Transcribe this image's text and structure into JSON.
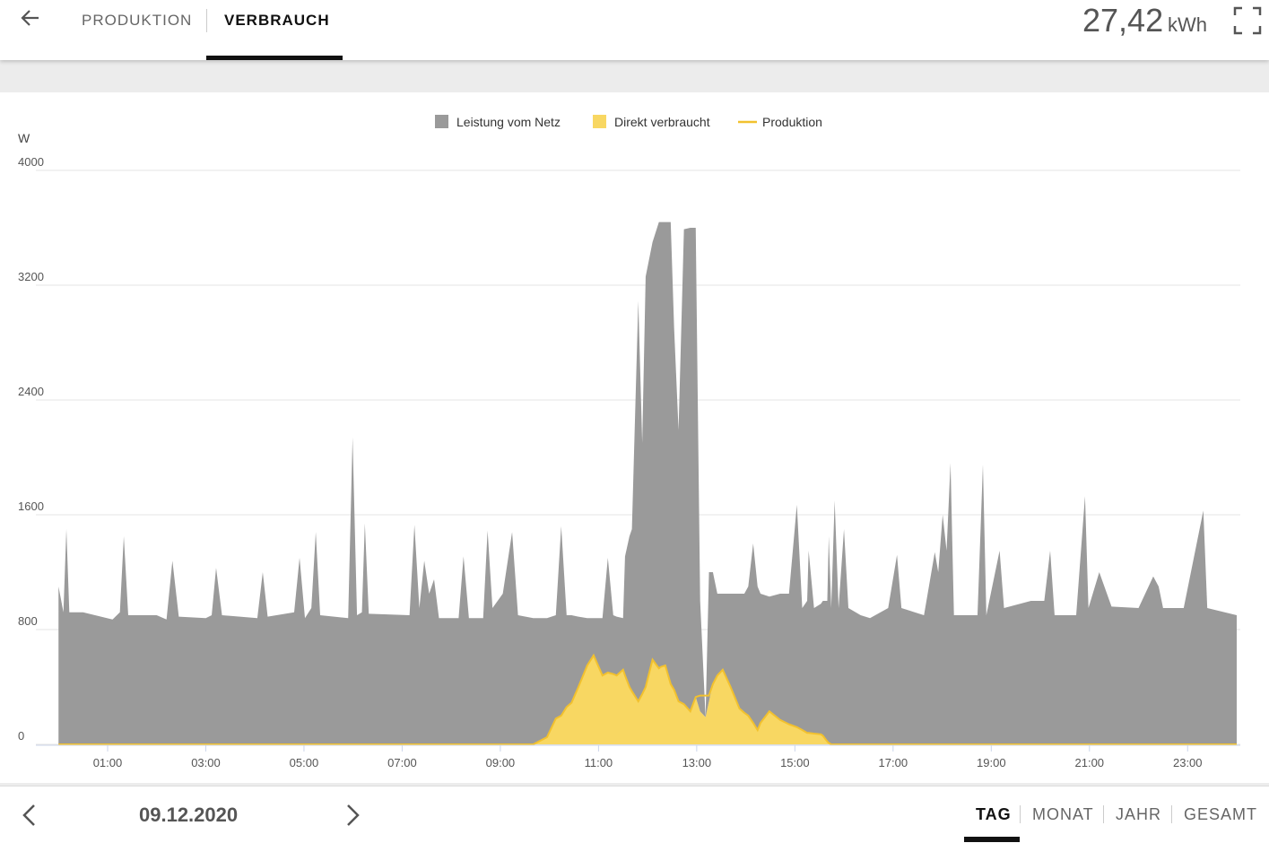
{
  "header": {
    "tabs": [
      "PRODUKTION",
      "VERBRAUCH"
    ],
    "total": "27,42",
    "unit": "kWh"
  },
  "footer": {
    "date": "09.12.2020",
    "periods": [
      "TAG",
      "MONAT",
      "JAHR",
      "GESAMT"
    ]
  },
  "chart_data": {
    "type": "area",
    "y_label": "W",
    "grid": true,
    "ylim": [
      0,
      4000
    ],
    "yticks": [
      0,
      800,
      1600,
      2400,
      3200,
      4000
    ],
    "xlim": [
      0,
      24
    ],
    "xticks": [
      {
        "value": 1,
        "label": "01:00"
      },
      {
        "value": 3,
        "label": "03:00"
      },
      {
        "value": 5,
        "label": "05:00"
      },
      {
        "value": 7,
        "label": "07:00"
      },
      {
        "value": 9,
        "label": "09:00"
      },
      {
        "value": 11,
        "label": "11:00"
      },
      {
        "value": 13,
        "label": "13:00"
      },
      {
        "value": 15,
        "label": "15:00"
      },
      {
        "value": 17,
        "label": "17:00"
      },
      {
        "value": 19,
        "label": "19:00"
      },
      {
        "value": 21,
        "label": "21:00"
      },
      {
        "value": 23,
        "label": "23:00"
      }
    ],
    "x": [
      0,
      0.1,
      0.16,
      0.22,
      0.5,
      1.1,
      1.25,
      1.33,
      1.42,
      2,
      2.2,
      2.32,
      2.45,
      3,
      3.12,
      3.21,
      3.33,
      4.05,
      4.16,
      4.26,
      4.8,
      4.91,
      5.02,
      5.15,
      5.24,
      5.33,
      5.9,
      5.99,
      6.08,
      6.18,
      6.24,
      6.32,
      7.15,
      7.25,
      7.35,
      7.45,
      7.55,
      7.65,
      7.75,
      8.15,
      8.25,
      8.36,
      8.65,
      8.74,
      8.84,
      9.05,
      9.24,
      9.36,
      9.67,
      9.95,
      10.13,
      10.24,
      10.35,
      10.45,
      10.59,
      10.77,
      10.9,
      11.08,
      11.19,
      11.3,
      11.37,
      11.5,
      11.54,
      11.63,
      11.68,
      11.81,
      11.89,
      11.96,
      12.1,
      12.23,
      12.27,
      12.36,
      12.47,
      12.54,
      12.63,
      12.74,
      12.87,
      12.98,
      13.07,
      13.18,
      13.25,
      13.33,
      13.42,
      13.53,
      13.69,
      13.87,
      13.97,
      14.05,
      14.15,
      14.24,
      14.3,
      14.48,
      14.7,
      14.88,
      15.04,
      15.15,
      15.25,
      15.28,
      15.39,
      15.53,
      15.57,
      15.66,
      15.69,
      15.74,
      15.81,
      15.89,
      16,
      16.09,
      16.34,
      16.53,
      16.9,
      17.08,
      17.17,
      17.63,
      17.85,
      17.92,
      18.01,
      18.09,
      18.17,
      18.24,
      18.72,
      18.83,
      18.9,
      19.17,
      19.26,
      19.81,
      20.08,
      20.2,
      20.29,
      20.73,
      20.91,
      20.98,
      21.2,
      21.45,
      22,
      22.3,
      22.41,
      22.5,
      22.92,
      23.32,
      23.4,
      24
    ],
    "series": [
      {
        "name": "Leistung vom Netz",
        "color": "#9a9a9a",
        "style": "area",
        "values": [
          1100,
          920,
          1500,
          920,
          920,
          870,
          920,
          1450,
          900,
          900,
          870,
          1280,
          890,
          880,
          900,
          1230,
          900,
          880,
          1200,
          890,
          920,
          1300,
          880,
          950,
          1480,
          900,
          880,
          2140,
          900,
          920,
          1540,
          910,
          900,
          1530,
          950,
          1280,
          1050,
          1150,
          880,
          880,
          1310,
          880,
          880,
          1490,
          950,
          1050,
          1480,
          900,
          880,
          830,
          720,
          1320,
          640,
          610,
          490,
          330,
          260,
          400,
          800,
          410,
          410,
          360,
          830,
          1050,
          1130,
          2790,
          1750,
          2860,
          2910,
          3110,
          3100,
          3090,
          3220,
          2520,
          1890,
          3310,
          3370,
          3270,
          770,
          0,
          900,
          780,
          570,
          530,
          650,
          800,
          830,
          900,
          1250,
          1000,
          900,
          800,
          880,
          910,
          1550,
          850,
          920,
          1270,
          875,
          910,
          940,
          980,
          1440,
          950,
          1700,
          950,
          1500,
          950,
          900,
          880,
          950,
          1320,
          950,
          900,
          1340,
          1200,
          1600,
          1350,
          1960,
          900,
          900,
          1950,
          900,
          1350,
          950,
          1000,
          1000,
          1350,
          900,
          900,
          1730,
          950,
          1200,
          960,
          950,
          1170,
          1100,
          950,
          950,
          1630,
          950,
          900
        ]
      },
      {
        "name": "Direkt verbraucht",
        "color": "#f8d762",
        "style": "area",
        "values": [
          0,
          0,
          0,
          0,
          0,
          0,
          0,
          0,
          0,
          0,
          0,
          0,
          0,
          0,
          0,
          0,
          0,
          0,
          0,
          0,
          0,
          0,
          0,
          0,
          0,
          0,
          0,
          0,
          0,
          0,
          0,
          0,
          0,
          0,
          0,
          0,
          0,
          0,
          0,
          0,
          0,
          0,
          0,
          0,
          0,
          0,
          0,
          0,
          0,
          50,
          180,
          200,
          260,
          290,
          400,
          550,
          620,
          480,
          500,
          490,
          480,
          520,
          480,
          400,
          370,
          300,
          350,
          400,
          590,
          530,
          540,
          550,
          420,
          380,
          300,
          280,
          230,
          330,
          230,
          190,
          300,
          420,
          480,
          520,
          400,
          250,
          220,
          200,
          150,
          100,
          150,
          230,
          170,
          140,
          120,
          100,
          80,
          80,
          75,
          70,
          60,
          20,
          10,
          0,
          0,
          0,
          0,
          0,
          0,
          0,
          0,
          0,
          0,
          0,
          0,
          0,
          0,
          0,
          0,
          0,
          0,
          0,
          0,
          0,
          0,
          0,
          0,
          0,
          0,
          0,
          0,
          0,
          0,
          0,
          0,
          0,
          0,
          0,
          0,
          0,
          0,
          0
        ]
      },
      {
        "name": "Produktion",
        "color": "#f2c12e",
        "style": "line",
        "values": [
          0,
          0,
          0,
          0,
          0,
          0,
          0,
          0,
          0,
          0,
          0,
          0,
          0,
          0,
          0,
          0,
          0,
          0,
          0,
          0,
          0,
          0,
          0,
          0,
          0,
          0,
          0,
          0,
          0,
          0,
          0,
          0,
          0,
          0,
          0,
          0,
          0,
          0,
          0,
          0,
          0,
          0,
          0,
          0,
          0,
          0,
          0,
          0,
          0,
          50,
          180,
          200,
          260,
          290,
          400,
          550,
          620,
          480,
          500,
          490,
          480,
          520,
          480,
          400,
          370,
          300,
          350,
          400,
          590,
          530,
          540,
          550,
          420,
          380,
          300,
          280,
          230,
          330,
          340,
          340,
          340,
          420,
          480,
          520,
          400,
          250,
          220,
          200,
          150,
          100,
          150,
          230,
          170,
          140,
          120,
          100,
          80,
          80,
          75,
          70,
          60,
          20,
          10,
          0,
          0,
          0,
          0,
          0,
          0,
          0,
          0,
          0,
          0,
          0,
          0,
          0,
          0,
          0,
          0,
          0,
          0,
          0,
          0,
          0,
          0,
          0,
          0,
          0,
          0,
          0,
          0,
          0,
          0,
          0,
          0,
          0,
          0,
          0,
          0,
          0,
          0,
          0
        ]
      }
    ]
  }
}
